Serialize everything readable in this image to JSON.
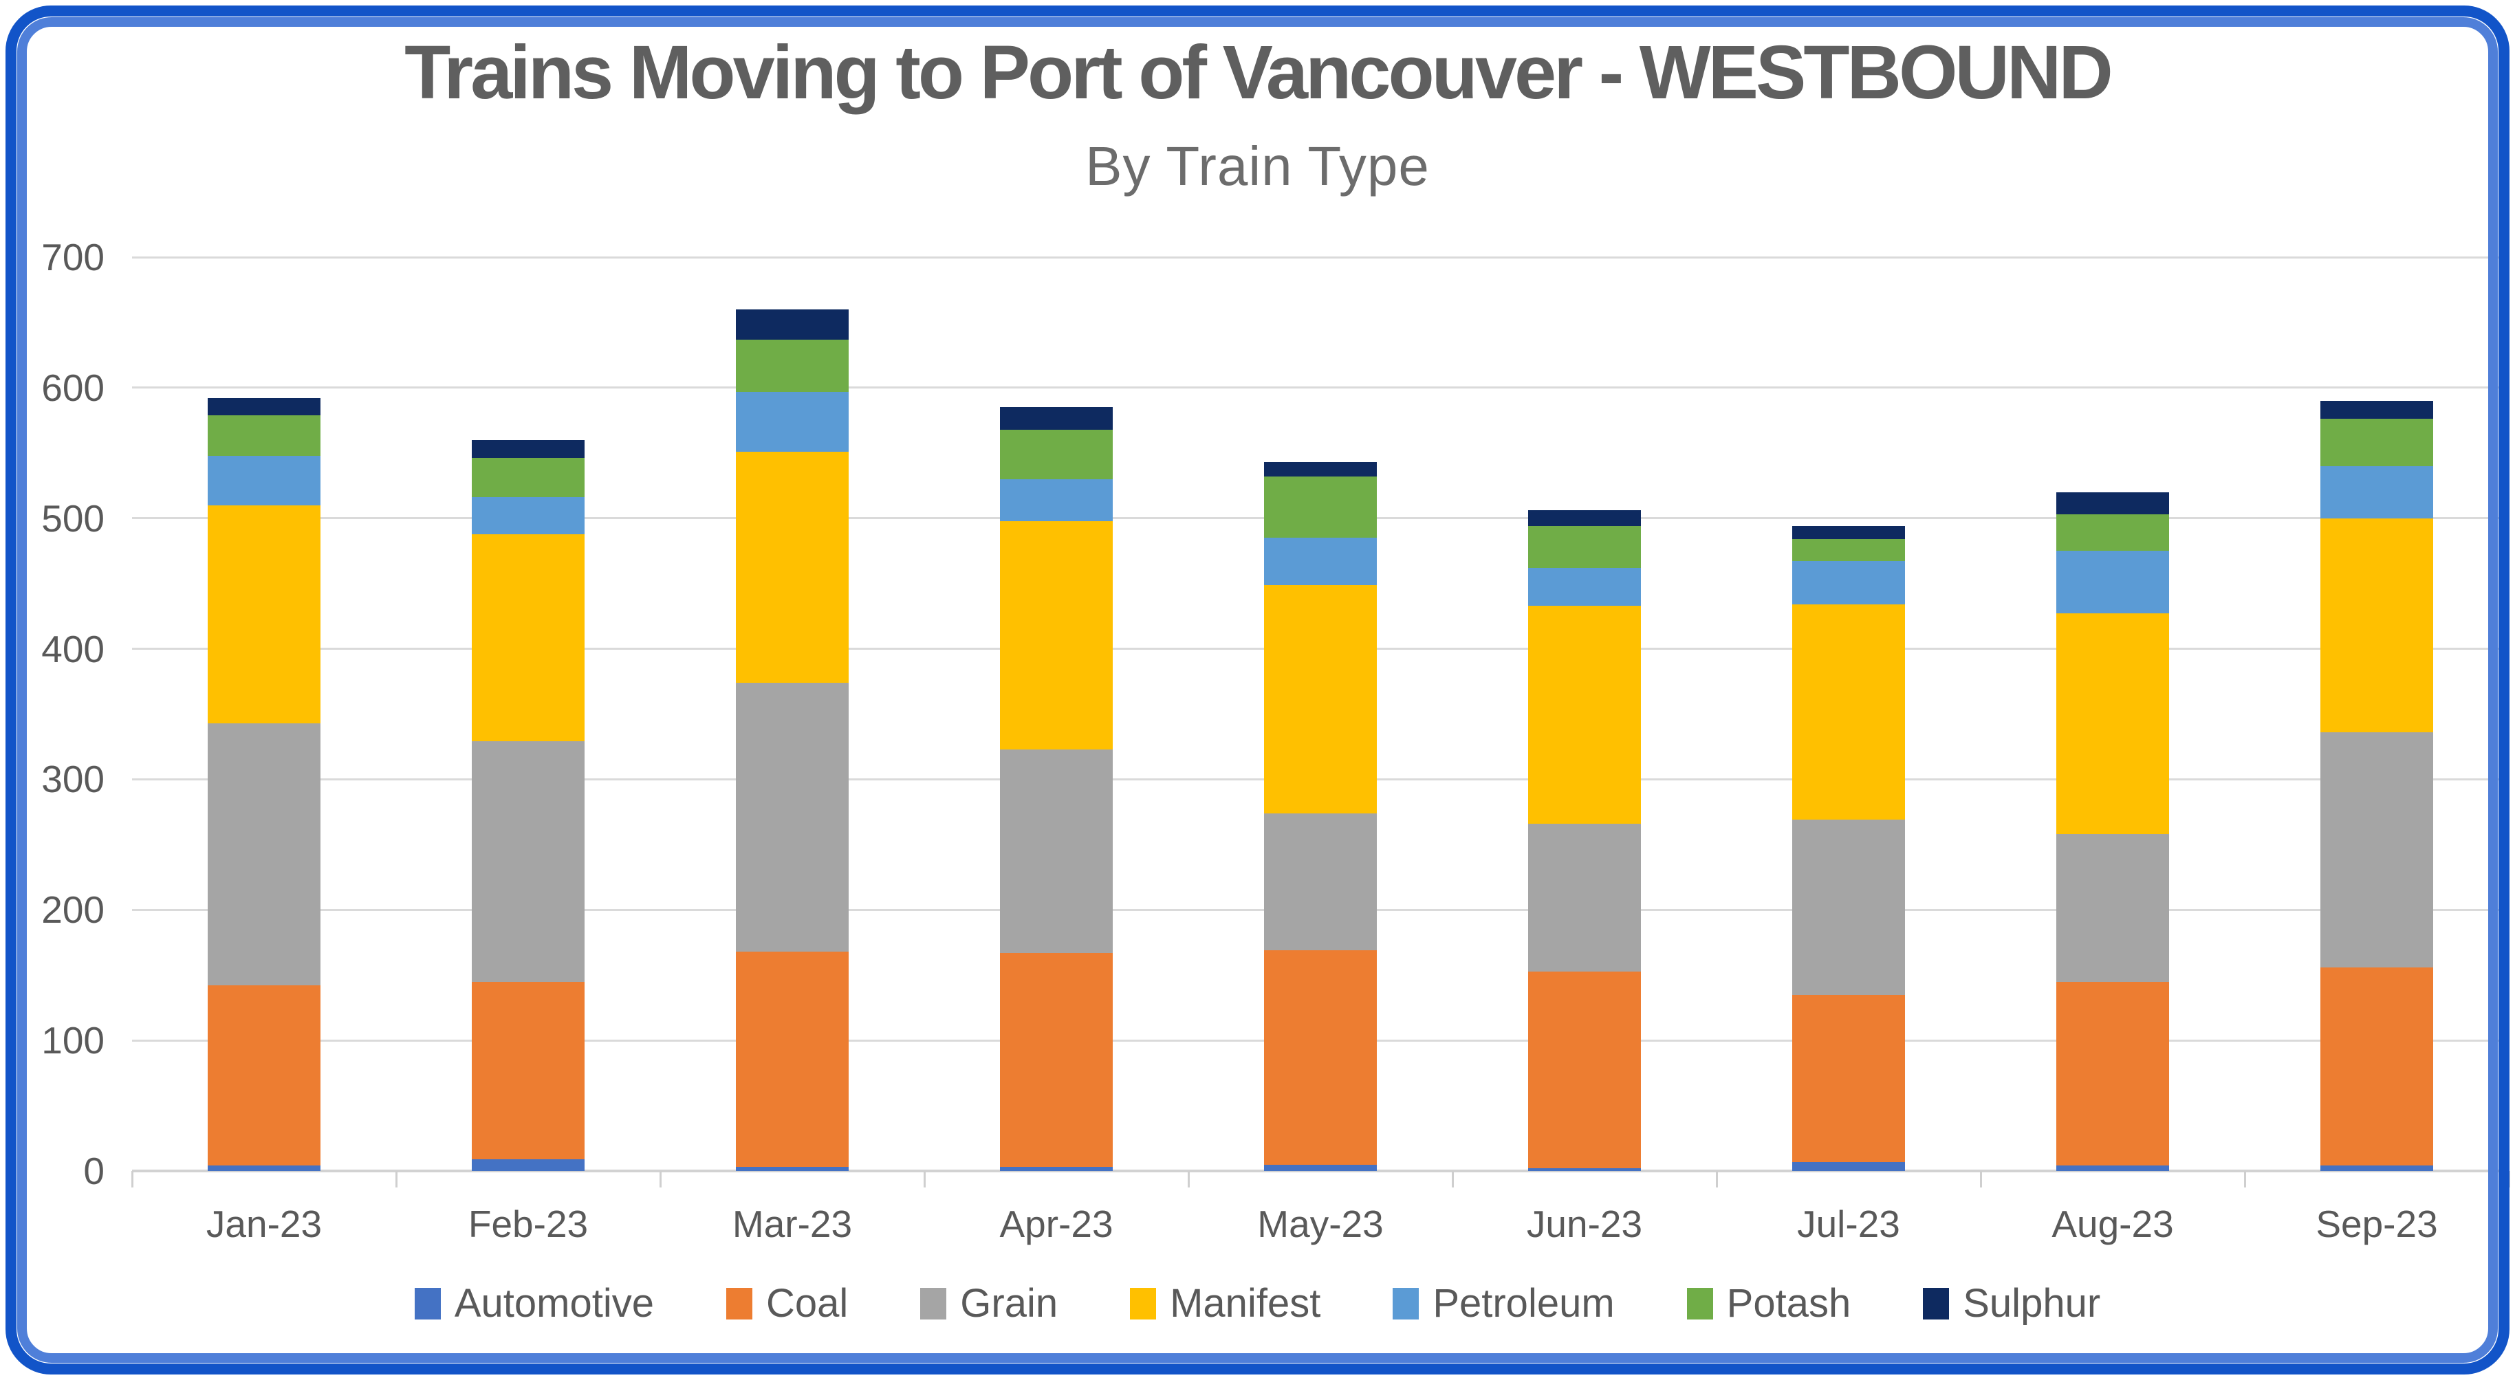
{
  "header": {
    "title": "Trains Moving to Port of Vancouver - WESTBOUND",
    "subtitle": "By Train Type"
  },
  "frame_colors": {
    "outer_border": "#1254C8",
    "inner_border": "#4F7FD9"
  },
  "chart_data": {
    "type": "bar",
    "stacked": true,
    "title": "Trains Moving to Port of Vancouver - WESTBOUND",
    "subtitle": "By Train Type",
    "xlabel": "",
    "ylabel": "",
    "ylim": [
      0,
      700
    ],
    "y_ticks": [
      0,
      100,
      200,
      300,
      400,
      500,
      600,
      700
    ],
    "y_tick_labels": [
      "0",
      "100",
      "200",
      "300",
      "400",
      "500",
      "600",
      "700"
    ],
    "grid": true,
    "legend_position": "bottom",
    "categories": [
      "Jan-23",
      "Feb-23",
      "Mar-23",
      "Apr-23",
      "May-23",
      "Jun-23",
      "Jul-23",
      "Aug-23",
      "Sep-23"
    ],
    "series": [
      {
        "name": "Automotive",
        "color": "#4472C4",
        "values": [
          4,
          9,
          3,
          3,
          5,
          2,
          7,
          4,
          4
        ]
      },
      {
        "name": "Coal",
        "color": "#ED7D31",
        "values": [
          138,
          136,
          165,
          164,
          164,
          151,
          128,
          141,
          152
        ]
      },
      {
        "name": "Grain",
        "color": "#A5A5A5",
        "values": [
          201,
          184,
          206,
          156,
          105,
          113,
          134,
          113,
          180
        ]
      },
      {
        "name": "Manifest",
        "color": "#FFC000",
        "values": [
          167,
          159,
          177,
          175,
          175,
          167,
          165,
          169,
          164
        ]
      },
      {
        "name": "Petroleum",
        "color": "#5B9BD5",
        "values": [
          38,
          28,
          46,
          32,
          36,
          29,
          33,
          48,
          40
        ]
      },
      {
        "name": "Potash",
        "color": "#70AD47",
        "values": [
          31,
          30,
          40,
          38,
          47,
          32,
          17,
          28,
          36
        ]
      },
      {
        "name": "Sulphur",
        "color": "#0E2A60",
        "values": [
          13,
          14,
          23,
          17,
          11,
          12,
          10,
          17,
          14
        ]
      }
    ],
    "totals": [
      592,
      560,
      660,
      585,
      543,
      506,
      494,
      520,
      590
    ]
  }
}
